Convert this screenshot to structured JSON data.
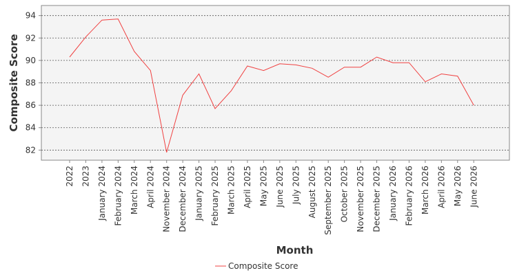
{
  "chart_data": {
    "type": "line",
    "title": "",
    "xlabel": "Month",
    "ylabel": "Composite Score",
    "categories": [
      "2022",
      "2023",
      "January 2024",
      "February 2024",
      "March 2024",
      "April 2024",
      "November 2024",
      "December 2024",
      "January 2025",
      "February 2025",
      "March 2025",
      "April 2025",
      "May 2025",
      "June 2025",
      "July 2025",
      "August 2025",
      "September 2025",
      "October 2025",
      "November 2025",
      "December 2025",
      "January 2026",
      "February 2026",
      "March 2026",
      "April 2026",
      "May 2026",
      "June 2026"
    ],
    "series": [
      {
        "name": "Composite Score",
        "color": "#f04040",
        "values": [
          90.3,
          92.1,
          93.6,
          93.7,
          90.8,
          89.1,
          81.8,
          86.9,
          88.8,
          85.7,
          87.3,
          89.5,
          89.1,
          89.7,
          89.6,
          89.3,
          88.5,
          89.4,
          89.4,
          90.3,
          89.8,
          89.8,
          88.1,
          88.8,
          88.6,
          86.0
        ]
      }
    ],
    "yticks": [
      82,
      84,
      86,
      88,
      90,
      92,
      94
    ],
    "ylim": [
      81.1,
      94.9
    ],
    "grid": true,
    "legend": "bottom-center",
    "plot_background": "#f4f4f4"
  }
}
